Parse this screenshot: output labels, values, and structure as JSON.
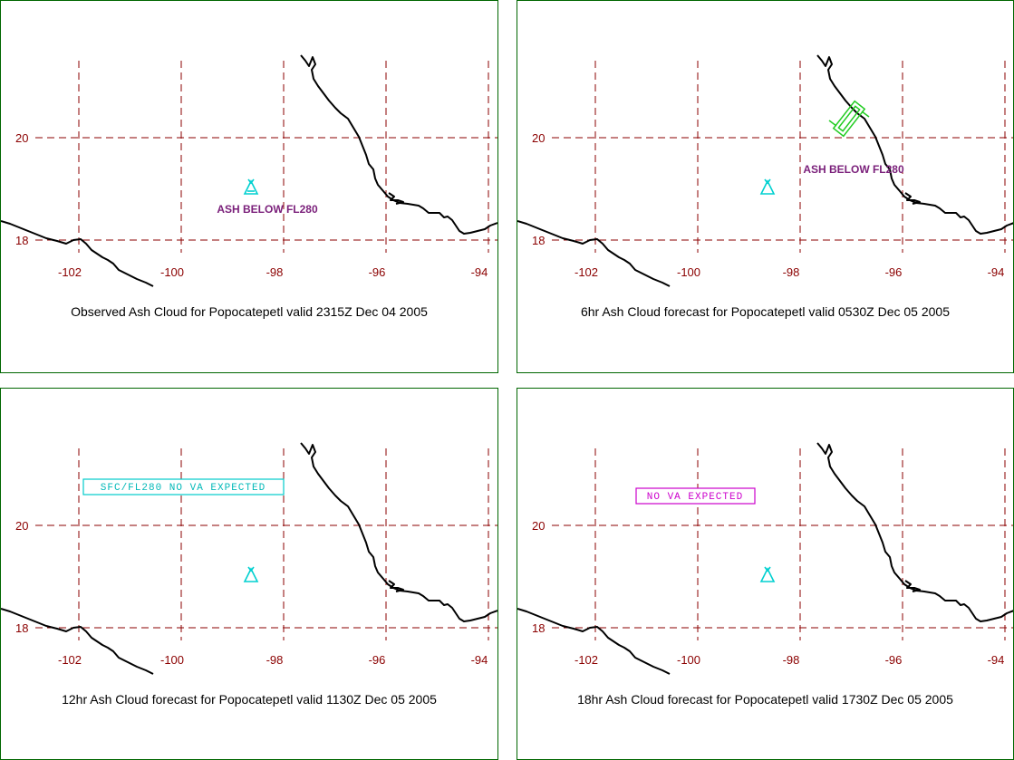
{
  "colors": {
    "grid": "#8b0000",
    "coastline": "#000000",
    "volcano": "#00d0d0",
    "ash_label": "#7a1f7a",
    "cloud_outline": "#22cc22",
    "panel_border": "#006600"
  },
  "axes": {
    "lon_ticks": [
      "-102",
      "-100",
      "-98",
      "-96",
      "-94"
    ],
    "lat_ticks": [
      "20",
      "18"
    ]
  },
  "panels": [
    {
      "caption": "Observed Ash Cloud for Popocatepetl valid 2315Z Dec 04 2005",
      "label": "ASH BELOW FL280",
      "label_style": "plain",
      "volcano_icon": "volcano-triangle-icon",
      "has_ash_cloud": false
    },
    {
      "caption": "6hr Ash Cloud forecast for Popocatepetl valid 0530Z Dec 05 2005",
      "label": "ASH BELOW FL280",
      "label_style": "plain",
      "volcano_icon": "volcano-triangle-icon",
      "has_ash_cloud": true
    },
    {
      "caption": "12hr Ash Cloud forecast for Popocatepetl valid 1130Z Dec 05 2005",
      "label": "SFC/FL280 NO VA EXPECTED",
      "label_style": "boxed-cyan",
      "volcano_icon": "volcano-triangle-icon",
      "has_ash_cloud": false
    },
    {
      "caption": "18hr Ash Cloud forecast for Popocatepetl valid 1730Z Dec 05 2005",
      "label": "NO VA EXPECTED",
      "label_style": "boxed-magenta",
      "volcano_icon": "volcano-triangle-icon",
      "has_ash_cloud": false
    }
  ]
}
